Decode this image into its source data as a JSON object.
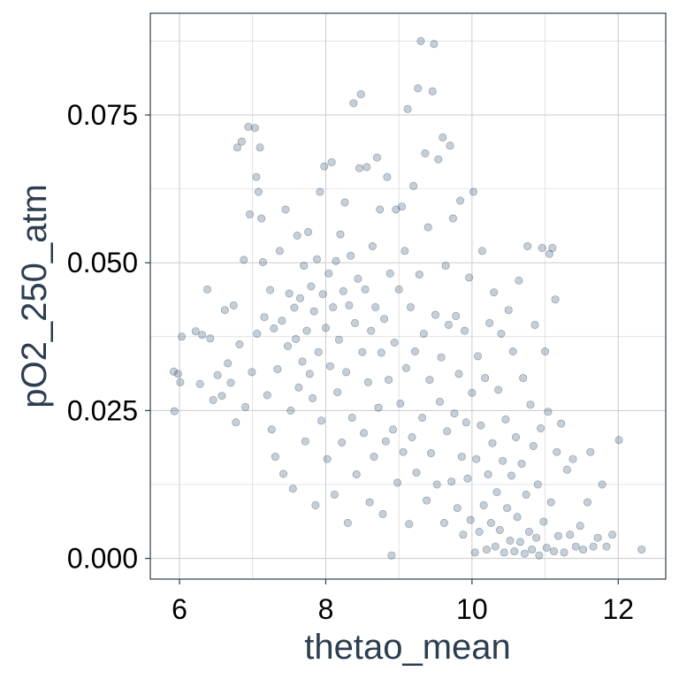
{
  "chart_data": {
    "type": "scatter",
    "title": "",
    "xlabel": "thetao_mean",
    "ylabel": "pO2_250_atm",
    "xlim": [
      5.6,
      12.65
    ],
    "ylim": [
      -0.0035,
      0.0922
    ],
    "x_ticks": [
      6,
      8,
      10,
      12
    ],
    "x_tick_labels": [
      "6",
      "8",
      "10",
      "12"
    ],
    "y_ticks": [
      0.0,
      0.025,
      0.05,
      0.075
    ],
    "y_tick_labels": [
      "0.000",
      "0.025",
      "0.050",
      "0.075"
    ],
    "grid": true,
    "legend": "none",
    "colors": {
      "point": "#1b3a5c",
      "grid": "#d0d0d0",
      "frame": "#2c3e50",
      "axis_title": "#2c3e50"
    },
    "points": [
      [
        5.92,
        0.0316
      ],
      [
        5.93,
        0.0249
      ],
      [
        5.98,
        0.0312
      ],
      [
        6.01,
        0.0298
      ],
      [
        6.03,
        0.0375
      ],
      [
        6.22,
        0.0384
      ],
      [
        6.28,
        0.0295
      ],
      [
        6.31,
        0.0378
      ],
      [
        6.38,
        0.0455
      ],
      [
        6.42,
        0.0372
      ],
      [
        6.46,
        0.0268
      ],
      [
        6.52,
        0.031
      ],
      [
        6.58,
        0.0275
      ],
      [
        6.62,
        0.042
      ],
      [
        6.66,
        0.033
      ],
      [
        6.7,
        0.0297
      ],
      [
        6.74,
        0.0428
      ],
      [
        6.77,
        0.023
      ],
      [
        6.79,
        0.0695
      ],
      [
        6.82,
        0.0362
      ],
      [
        6.85,
        0.0705
      ],
      [
        6.88,
        0.0505
      ],
      [
        6.9,
        0.0256
      ],
      [
        6.94,
        0.073
      ],
      [
        6.96,
        0.0582
      ],
      [
        6.99,
        0.0315
      ],
      [
        7.03,
        0.0728
      ],
      [
        7.05,
        0.0645
      ],
      [
        7.06,
        0.038
      ],
      [
        7.08,
        0.062
      ],
      [
        7.1,
        0.0695
      ],
      [
        7.12,
        0.0575
      ],
      [
        7.14,
        0.0501
      ],
      [
        7.16,
        0.0408
      ],
      [
        7.2,
        0.0276
      ],
      [
        7.24,
        0.0454
      ],
      [
        7.26,
        0.0218
      ],
      [
        7.29,
        0.0389
      ],
      [
        7.31,
        0.0172
      ],
      [
        7.34,
        0.032
      ],
      [
        7.37,
        0.052
      ],
      [
        7.4,
        0.0402
      ],
      [
        7.42,
        0.0143
      ],
      [
        7.45,
        0.059
      ],
      [
        7.48,
        0.0359
      ],
      [
        7.5,
        0.0448
      ],
      [
        7.52,
        0.025
      ],
      [
        7.55,
        0.0118
      ],
      [
        7.57,
        0.0424
      ],
      [
        7.59,
        0.0371
      ],
      [
        7.61,
        0.0546
      ],
      [
        7.63,
        0.0289
      ],
      [
        7.65,
        0.044
      ],
      [
        7.68,
        0.0333
      ],
      [
        7.7,
        0.0495
      ],
      [
        7.72,
        0.0198
      ],
      [
        7.74,
        0.0385
      ],
      [
        7.76,
        0.0552
      ],
      [
        7.78,
        0.0312
      ],
      [
        7.8,
        0.046
      ],
      [
        7.82,
        0.0271
      ],
      [
        7.84,
        0.0418
      ],
      [
        7.86,
        0.009
      ],
      [
        7.88,
        0.0506
      ],
      [
        7.9,
        0.0349
      ],
      [
        7.92,
        0.062
      ],
      [
        7.94,
        0.0233
      ],
      [
        7.96,
        0.0447
      ],
      [
        7.98,
        0.0663
      ],
      [
        8.0,
        0.039
      ],
      [
        8.02,
        0.0168
      ],
      [
        8.04,
        0.0482
      ],
      [
        8.06,
        0.0325
      ],
      [
        8.08,
        0.067
      ],
      [
        8.1,
        0.0425
      ],
      [
        8.12,
        0.0108
      ],
      [
        8.14,
        0.0503
      ],
      [
        8.16,
        0.0281
      ],
      [
        8.18,
        0.037
      ],
      [
        8.2,
        0.0548
      ],
      [
        8.22,
        0.0196
      ],
      [
        8.24,
        0.0452
      ],
      [
        8.26,
        0.0602
      ],
      [
        8.28,
        0.0315
      ],
      [
        8.3,
        0.006
      ],
      [
        8.32,
        0.0428
      ],
      [
        8.34,
        0.0512
      ],
      [
        8.36,
        0.0238
      ],
      [
        8.38,
        0.077
      ],
      [
        8.4,
        0.0398
      ],
      [
        8.42,
        0.0142
      ],
      [
        8.44,
        0.0473
      ],
      [
        8.46,
        0.066
      ],
      [
        8.48,
        0.0785
      ],
      [
        8.5,
        0.0349
      ],
      [
        8.52,
        0.0212
      ],
      [
        8.54,
        0.0455
      ],
      [
        8.56,
        0.0662
      ],
      [
        8.58,
        0.0298
      ],
      [
        8.6,
        0.0095
      ],
      [
        8.62,
        0.0385
      ],
      [
        8.64,
        0.0528
      ],
      [
        8.66,
        0.0172
      ],
      [
        8.68,
        0.0425
      ],
      [
        8.7,
        0.0678
      ],
      [
        8.72,
        0.0255
      ],
      [
        8.74,
        0.059
      ],
      [
        8.76,
        0.0348
      ],
      [
        8.78,
        0.0075
      ],
      [
        8.8,
        0.0405
      ],
      [
        8.82,
        0.0198
      ],
      [
        8.84,
        0.0645
      ],
      [
        8.86,
        0.0302
      ],
      [
        8.88,
        0.0482
      ],
      [
        8.9,
        0.0005
      ],
      [
        8.92,
        0.0218
      ],
      [
        8.94,
        0.0365
      ],
      [
        8.96,
        0.059
      ],
      [
        8.98,
        0.0128
      ],
      [
        9.0,
        0.0455
      ],
      [
        9.02,
        0.0262
      ],
      [
        9.04,
        0.0595
      ],
      [
        9.06,
        0.018
      ],
      [
        9.08,
        0.052
      ],
      [
        9.1,
        0.0322
      ],
      [
        9.12,
        0.076
      ],
      [
        9.14,
        0.0058
      ],
      [
        9.16,
        0.0425
      ],
      [
        9.18,
        0.0205
      ],
      [
        9.2,
        0.063
      ],
      [
        9.22,
        0.035
      ],
      [
        9.24,
        0.0145
      ],
      [
        9.26,
        0.0795
      ],
      [
        9.28,
        0.048
      ],
      [
        9.3,
        0.0875
      ],
      [
        9.32,
        0.0238
      ],
      [
        9.34,
        0.038
      ],
      [
        9.36,
        0.0685
      ],
      [
        9.38,
        0.0098
      ],
      [
        9.4,
        0.056
      ],
      [
        9.42,
        0.0302
      ],
      [
        9.44,
        0.0178
      ],
      [
        9.46,
        0.079
      ],
      [
        9.48,
        0.087
      ],
      [
        9.5,
        0.0412
      ],
      [
        9.52,
        0.0125
      ],
      [
        9.54,
        0.0675
      ],
      [
        9.56,
        0.0265
      ],
      [
        9.58,
        0.034
      ],
      [
        9.6,
        0.0712
      ],
      [
        9.62,
        0.006
      ],
      [
        9.64,
        0.0495
      ],
      [
        9.66,
        0.0215
      ],
      [
        9.68,
        0.0395
      ],
      [
        9.7,
        0.0698
      ],
      [
        9.72,
        0.013
      ],
      [
        9.74,
        0.0575
      ],
      [
        9.76,
        0.0245
      ],
      [
        9.78,
        0.041
      ],
      [
        9.8,
        0.0085
      ],
      [
        9.82,
        0.0312
      ],
      [
        9.84,
        0.0605
      ],
      [
        9.86,
        0.0172
      ],
      [
        9.88,
        0.004
      ],
      [
        9.9,
        0.0385
      ],
      [
        9.92,
        0.023
      ],
      [
        9.94,
        0.0135
      ],
      [
        9.96,
        0.0475
      ],
      [
        9.98,
        0.0065
      ],
      [
        10.0,
        0.028
      ],
      [
        10.02,
        0.062
      ],
      [
        10.04,
        0.001
      ],
      [
        10.06,
        0.0168
      ],
      [
        10.08,
        0.0342
      ],
      [
        10.1,
        0.0045
      ],
      [
        10.12,
        0.0225
      ],
      [
        10.14,
        0.052
      ],
      [
        10.16,
        0.009
      ],
      [
        10.18,
        0.0305
      ],
      [
        10.2,
        0.0015
      ],
      [
        10.22,
        0.0142
      ],
      [
        10.24,
        0.0398
      ],
      [
        10.26,
        0.006
      ],
      [
        10.28,
        0.0195
      ],
      [
        10.3,
        0.045
      ],
      [
        10.32,
        0.002
      ],
      [
        10.34,
        0.0112
      ],
      [
        10.36,
        0.0285
      ],
      [
        10.38,
        0.0048
      ],
      [
        10.4,
        0.038
      ],
      [
        10.42,
        0.0165
      ],
      [
        10.44,
        0.001
      ],
      [
        10.46,
        0.0235
      ],
      [
        10.48,
        0.0085
      ],
      [
        10.5,
        0.042
      ],
      [
        10.52,
        0.003
      ],
      [
        10.54,
        0.014
      ],
      [
        10.56,
        0.035
      ],
      [
        10.58,
        0.0012
      ],
      [
        10.6,
        0.0205
      ],
      [
        10.62,
        0.007
      ],
      [
        10.64,
        0.047
      ],
      [
        10.66,
        0.0028
      ],
      [
        10.68,
        0.016
      ],
      [
        10.7,
        0.0305
      ],
      [
        10.72,
        0.0008
      ],
      [
        10.74,
        0.0108
      ],
      [
        10.76,
        0.0528
      ],
      [
        10.78,
        0.0045
      ],
      [
        10.8,
        0.026
      ],
      [
        10.82,
        0.0015
      ],
      [
        10.84,
        0.019
      ],
      [
        10.86,
        0.0395
      ],
      [
        10.88,
        0.0035
      ],
      [
        10.9,
        0.0125
      ],
      [
        10.92,
        0.0005
      ],
      [
        10.94,
        0.022
      ],
      [
        10.96,
        0.0525
      ],
      [
        10.98,
        0.0062
      ],
      [
        11.0,
        0.035
      ],
      [
        11.02,
        0.0018
      ],
      [
        11.04,
        0.0248
      ],
      [
        11.06,
        0.0515
      ],
      [
        11.08,
        0.0095
      ],
      [
        11.1,
        0.0525
      ],
      [
        11.12,
        0.0012
      ],
      [
        11.14,
        0.0438
      ],
      [
        11.16,
        0.018
      ],
      [
        11.18,
        0.0038
      ],
      [
        11.22,
        0.0228
      ],
      [
        11.26,
        0.001
      ],
      [
        11.3,
        0.015
      ],
      [
        11.34,
        0.004
      ],
      [
        11.38,
        0.0168
      ],
      [
        11.42,
        0.002
      ],
      [
        11.48,
        0.0055
      ],
      [
        11.52,
        0.0015
      ],
      [
        11.58,
        0.0095
      ],
      [
        11.62,
        0.018
      ],
      [
        11.66,
        0.002
      ],
      [
        11.72,
        0.0035
      ],
      [
        11.78,
        0.0125
      ],
      [
        11.84,
        0.002
      ],
      [
        11.92,
        0.004
      ],
      [
        12.01,
        0.02
      ],
      [
        12.32,
        0.0015
      ]
    ]
  }
}
